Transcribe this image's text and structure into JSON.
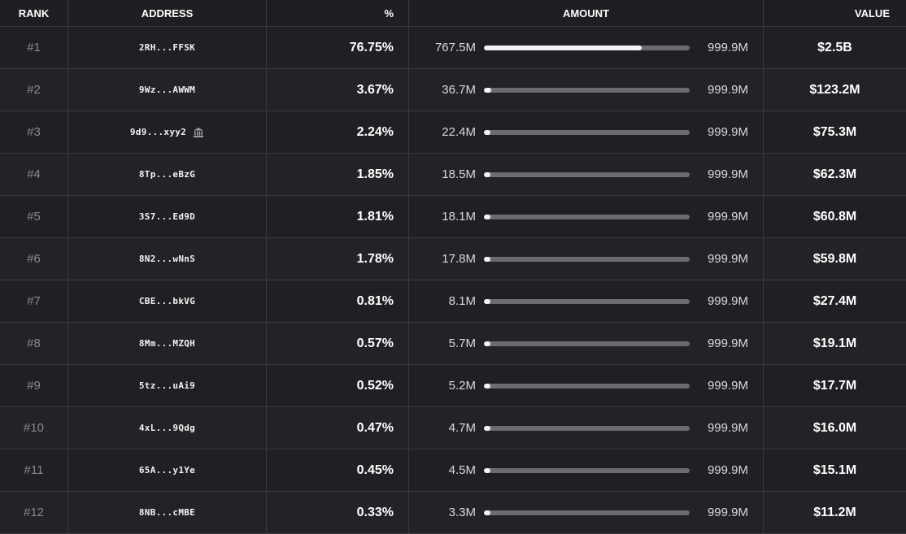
{
  "headers": {
    "rank": "RANK",
    "address": "ADDRESS",
    "pct": "%",
    "amount": "AMOUNT",
    "value": "VALUE"
  },
  "colors": {
    "bar_fill": "#f4f4f6",
    "bar_track": "#6b6b70",
    "background": "#1b1b1e"
  },
  "rows": [
    {
      "rank": "#1",
      "address": "2RH...FFSK",
      "pct": "76.75%",
      "amount": "767.5M",
      "total": "999.9M",
      "fill": 0.7675,
      "value": "$2.5B",
      "icon": ""
    },
    {
      "rank": "#2",
      "address": "9Wz...AWWM",
      "pct": "3.67%",
      "amount": "36.7M",
      "total": "999.9M",
      "fill": 0.0367,
      "value": "$123.2M",
      "icon": ""
    },
    {
      "rank": "#3",
      "address": "9d9...xyy2",
      "pct": "2.24%",
      "amount": "22.4M",
      "total": "999.9M",
      "fill": 0.0224,
      "value": "$75.3M",
      "icon": "bank-icon"
    },
    {
      "rank": "#4",
      "address": "8Tp...eBzG",
      "pct": "1.85%",
      "amount": "18.5M",
      "total": "999.9M",
      "fill": 0.0185,
      "value": "$62.3M",
      "icon": ""
    },
    {
      "rank": "#5",
      "address": "3S7...Ed9D",
      "pct": "1.81%",
      "amount": "18.1M",
      "total": "999.9M",
      "fill": 0.0181,
      "value": "$60.8M",
      "icon": ""
    },
    {
      "rank": "#6",
      "address": "8N2...wNnS",
      "pct": "1.78%",
      "amount": "17.8M",
      "total": "999.9M",
      "fill": 0.0178,
      "value": "$59.8M",
      "icon": ""
    },
    {
      "rank": "#7",
      "address": "CBE...bkVG",
      "pct": "0.81%",
      "amount": "8.1M",
      "total": "999.9M",
      "fill": 0.0081,
      "value": "$27.4M",
      "icon": ""
    },
    {
      "rank": "#8",
      "address": "8Mm...MZQH",
      "pct": "0.57%",
      "amount": "5.7M",
      "total": "999.9M",
      "fill": 0.0057,
      "value": "$19.1M",
      "icon": ""
    },
    {
      "rank": "#9",
      "address": "5tz...uAi9",
      "pct": "0.52%",
      "amount": "5.2M",
      "total": "999.9M",
      "fill": 0.0052,
      "value": "$17.7M",
      "icon": ""
    },
    {
      "rank": "#10",
      "address": "4xL...9Qdg",
      "pct": "0.47%",
      "amount": "4.7M",
      "total": "999.9M",
      "fill": 0.0047,
      "value": "$16.0M",
      "icon": ""
    },
    {
      "rank": "#11",
      "address": "65A...y1Ye",
      "pct": "0.45%",
      "amount": "4.5M",
      "total": "999.9M",
      "fill": 0.0045,
      "value": "$15.1M",
      "icon": ""
    },
    {
      "rank": "#12",
      "address": "8NB...cMBE",
      "pct": "0.33%",
      "amount": "3.3M",
      "total": "999.9M",
      "fill": 0.0033,
      "value": "$11.2M",
      "icon": ""
    }
  ]
}
